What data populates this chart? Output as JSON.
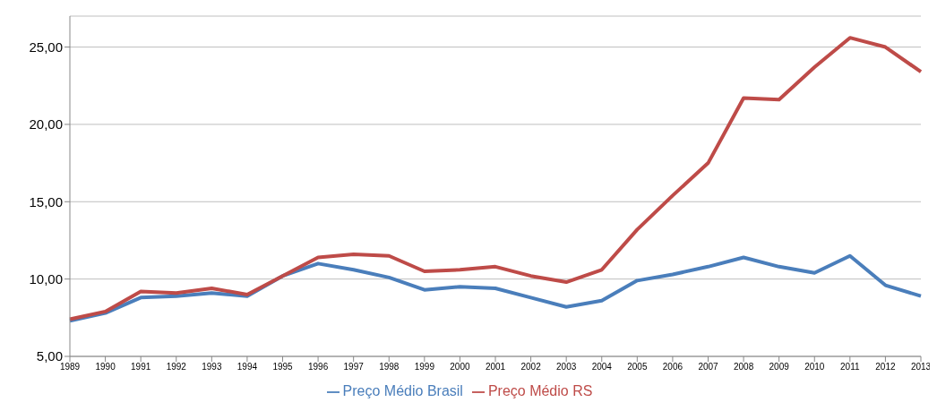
{
  "chart_data": {
    "type": "line",
    "categories": [
      "1989",
      "1990",
      "1991",
      "1992",
      "1993",
      "1994",
      "1995",
      "1996",
      "1997",
      "1998",
      "1999",
      "2000",
      "2001",
      "2002",
      "2003",
      "2004",
      "2005",
      "2006",
      "2007",
      "2008",
      "2009",
      "2010",
      "2011",
      "2012",
      "2013"
    ],
    "series": [
      {
        "name": "Preço Médio Brasil",
        "color": "#4a7ebb",
        "values": [
          7.3,
          7.8,
          8.8,
          8.9,
          9.1,
          8.9,
          10.2,
          11.0,
          10.6,
          10.1,
          9.3,
          9.5,
          9.4,
          8.8,
          8.2,
          8.6,
          9.9,
          10.3,
          10.8,
          11.4,
          10.8,
          10.4,
          11.5,
          9.6,
          8.9
        ]
      },
      {
        "name": "Preço Médio RS",
        "color": "#be4b48",
        "values": [
          7.4,
          7.9,
          9.2,
          9.1,
          9.4,
          9.0,
          10.2,
          11.4,
          11.6,
          11.5,
          10.5,
          10.6,
          10.8,
          10.2,
          9.8,
          10.6,
          13.2,
          15.4,
          17.5,
          21.7,
          21.6,
          23.7,
          25.6,
          25.0,
          23.4
        ]
      }
    ],
    "ylim": [
      5,
      27
    ],
    "yticks": [
      {
        "value": 5,
        "label": "5,00"
      },
      {
        "value": 10,
        "label": "10,00"
      },
      {
        "value": 15,
        "label": "15,00"
      },
      {
        "value": 20,
        "label": "20,00"
      },
      {
        "value": 25,
        "label": "25,00"
      }
    ],
    "grid": "y",
    "legend": "bottom",
    "marker": "none",
    "line_style": "solid"
  }
}
